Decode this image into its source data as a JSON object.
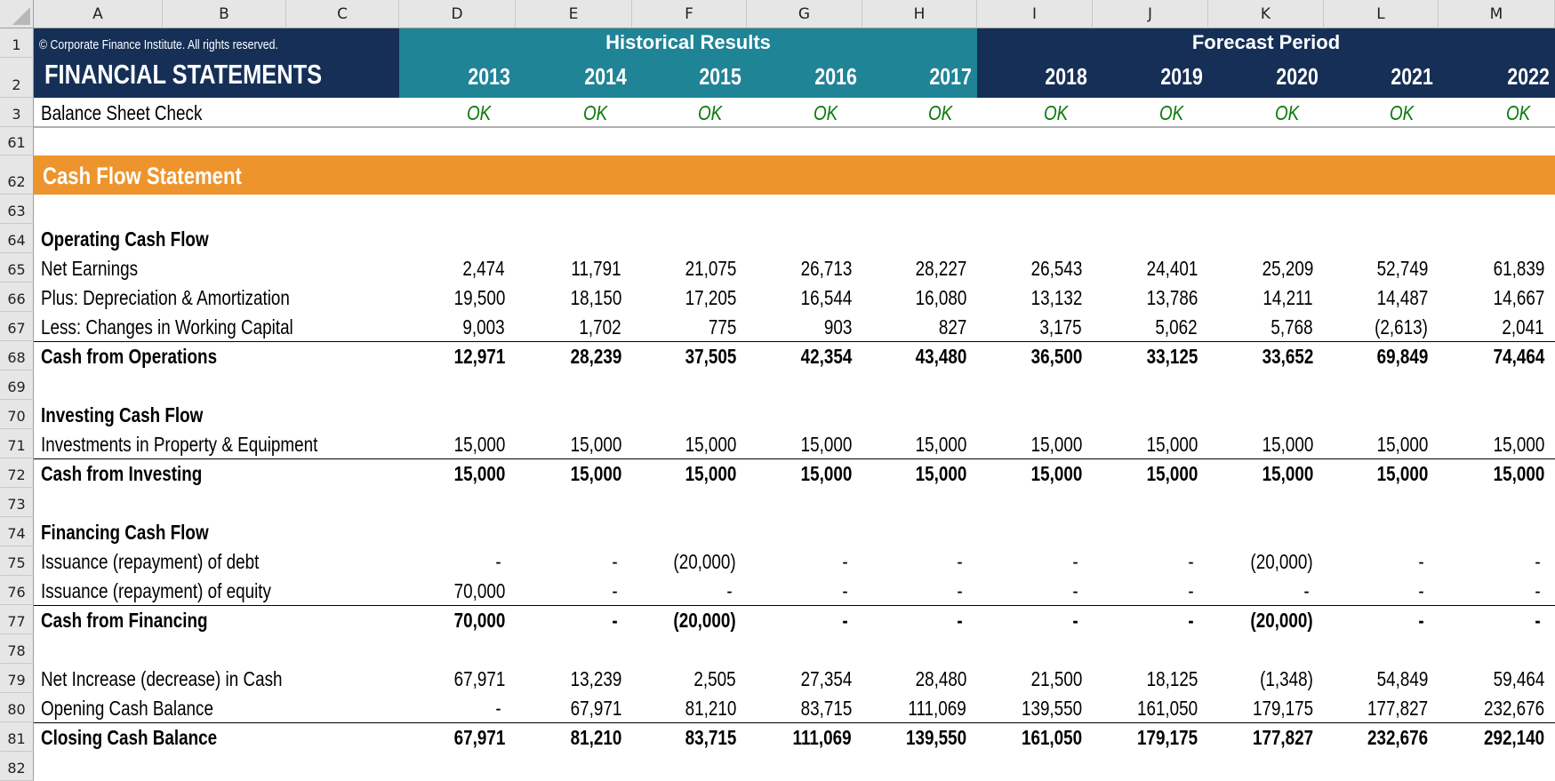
{
  "columns": [
    "A",
    "B",
    "C",
    "D",
    "E",
    "F",
    "G",
    "H",
    "I",
    "J",
    "K",
    "L",
    "M"
  ],
  "colors": {
    "navy": "#152f57",
    "teal": "#1f8496",
    "orange": "#ed942d",
    "ok_green": "#0a7a0a"
  },
  "header": {
    "copyright": "© Corporate Finance Institute. All rights reserved.",
    "title": "FINANCIAL STATEMENTS",
    "historical_label": "Historical Results",
    "forecast_label": "Forecast Period",
    "years": [
      "2013",
      "2014",
      "2015",
      "2016",
      "2017",
      "2018",
      "2019",
      "2020",
      "2021",
      "2022"
    ],
    "historical_count": 5
  },
  "check": {
    "row": "3",
    "label": "Balance Sheet Check",
    "values": [
      "OK",
      "OK",
      "OK",
      "OK",
      "OK",
      "OK",
      "OK",
      "OK",
      "OK",
      "OK"
    ]
  },
  "section": {
    "row": "62",
    "title": "Cash Flow Statement"
  },
  "row_numbers": {
    "r1": "1",
    "r2": "2",
    "r61": "61"
  },
  "rows": [
    {
      "row": "63",
      "type": "blank"
    },
    {
      "row": "64",
      "type": "heading",
      "label": "Operating Cash Flow"
    },
    {
      "row": "65",
      "type": "item",
      "label": "Net Earnings",
      "values": [
        "2,474",
        "11,791",
        "21,075",
        "26,713",
        "28,227",
        "26,543",
        "24,401",
        "25,209",
        "52,749",
        "61,839"
      ]
    },
    {
      "row": "66",
      "type": "item",
      "label": "Plus: Depreciation & Amortization",
      "values": [
        "19,500",
        "18,150",
        "17,205",
        "16,544",
        "16,080",
        "13,132",
        "13,786",
        "14,211",
        "14,487",
        "14,667"
      ]
    },
    {
      "row": "67",
      "type": "item",
      "label": "Less: Changes in Working Capital",
      "values": [
        "9,003",
        "1,702",
        "775",
        "903",
        "827",
        "3,175",
        "5,062",
        "5,768",
        "(2,613)",
        "2,041"
      ]
    },
    {
      "row": "68",
      "type": "total",
      "label": "Cash from Operations",
      "values": [
        "12,971",
        "28,239",
        "37,505",
        "42,354",
        "43,480",
        "36,500",
        "33,125",
        "33,652",
        "69,849",
        "74,464"
      ]
    },
    {
      "row": "69",
      "type": "blank"
    },
    {
      "row": "70",
      "type": "heading",
      "label": "Investing Cash Flow"
    },
    {
      "row": "71",
      "type": "item",
      "label": "Investments in Property & Equipment",
      "values": [
        "15,000",
        "15,000",
        "15,000",
        "15,000",
        "15,000",
        "15,000",
        "15,000",
        "15,000",
        "15,000",
        "15,000"
      ]
    },
    {
      "row": "72",
      "type": "total",
      "label": "Cash from Investing",
      "values": [
        "15,000",
        "15,000",
        "15,000",
        "15,000",
        "15,000",
        "15,000",
        "15,000",
        "15,000",
        "15,000",
        "15,000"
      ]
    },
    {
      "row": "73",
      "type": "blank"
    },
    {
      "row": "74",
      "type": "heading",
      "label": "Financing Cash Flow"
    },
    {
      "row": "75",
      "type": "item",
      "label": "Issuance (repayment) of debt",
      "values": [
        "-",
        "-",
        "(20,000)",
        "-",
        "-",
        "-",
        "-",
        "(20,000)",
        "-",
        "-"
      ]
    },
    {
      "row": "76",
      "type": "item",
      "label": "Issuance (repayment) of equity",
      "values": [
        "70,000",
        "-",
        "-",
        "-",
        "-",
        "-",
        "-",
        "-",
        "-",
        "-"
      ]
    },
    {
      "row": "77",
      "type": "total",
      "label": "Cash from Financing",
      "values": [
        "70,000",
        "-",
        "(20,000)",
        "-",
        "-",
        "-",
        "-",
        "(20,000)",
        "-",
        "-"
      ]
    },
    {
      "row": "78",
      "type": "blank"
    },
    {
      "row": "79",
      "type": "item",
      "label": "Net Increase (decrease) in Cash",
      "values": [
        "67,971",
        "13,239",
        "2,505",
        "27,354",
        "28,480",
        "21,500",
        "18,125",
        "(1,348)",
        "54,849",
        "59,464"
      ]
    },
    {
      "row": "80",
      "type": "item",
      "label": "Opening Cash Balance",
      "values": [
        "-",
        "67,971",
        "81,210",
        "83,715",
        "111,069",
        "139,550",
        "161,050",
        "179,175",
        "177,827",
        "232,676"
      ]
    },
    {
      "row": "81",
      "type": "total",
      "label": "Closing Cash Balance",
      "values": [
        "67,971",
        "81,210",
        "83,715",
        "111,069",
        "139,550",
        "161,050",
        "179,175",
        "177,827",
        "232,676",
        "292,140"
      ]
    },
    {
      "row": "82",
      "type": "blank"
    }
  ]
}
